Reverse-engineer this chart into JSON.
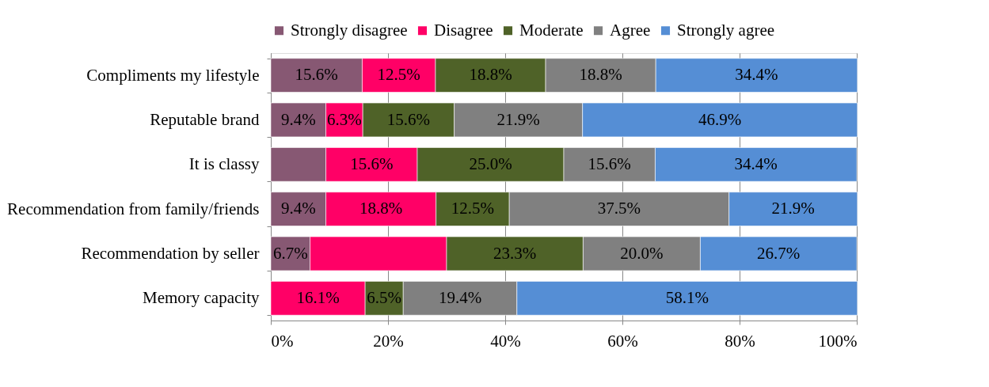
{
  "chart_data": {
    "type": "bar",
    "orientation": "horizontal",
    "stacked": true,
    "categories": [
      "Compliments my lifestyle",
      "Reputable brand",
      "It is classy",
      "Recommendation from family/friends",
      "Recommendation by seller",
      "Memory capacity"
    ],
    "series": [
      {
        "name": "Strongly disagree",
        "color": "#875873",
        "values": [
          15.6,
          9.4,
          9.4,
          9.4,
          6.7,
          null
        ],
        "value_labels": [
          "15.6%",
          "9.4%",
          null,
          "9.4%",
          "6.7%",
          null
        ]
      },
      {
        "name": "Disagree",
        "color": "#ff0066",
        "values": [
          12.5,
          6.3,
          15.6,
          18.8,
          23.3,
          16.1
        ],
        "value_labels": [
          "12.5%",
          "6.3%",
          "15.6%",
          "18.8%",
          null,
          "16.1%"
        ]
      },
      {
        "name": "Moderate",
        "color": "#4f6228",
        "values": [
          18.8,
          15.6,
          25.0,
          12.5,
          23.3,
          6.5
        ],
        "value_labels": [
          "18.8%",
          "15.6%",
          "25.0%",
          "12.5%",
          "23.3%",
          "6.5%"
        ]
      },
      {
        "name": "Agree",
        "color": "#808080",
        "values": [
          18.8,
          21.9,
          15.6,
          37.5,
          20.0,
          19.4
        ],
        "value_labels": [
          "18.8%",
          "21.9%",
          "15.6%",
          "37.5%",
          "20.0%",
          "19.4%"
        ]
      },
      {
        "name": "Strongly agree",
        "color": "#558ed5",
        "values": [
          34.4,
          46.9,
          34.4,
          21.9,
          26.7,
          58.1
        ],
        "value_labels": [
          "34.4%",
          "46.9%",
          "34.4%",
          "21.9%",
          "26.7%",
          "58.1%"
        ]
      }
    ],
    "xlim": [
      0,
      100
    ],
    "xticks": [
      {
        "value": 0,
        "label": "0%"
      },
      {
        "value": 20,
        "label": "20%"
      },
      {
        "value": 40,
        "label": "40%"
      },
      {
        "value": 60,
        "label": "60%"
      },
      {
        "value": 80,
        "label": "80%"
      },
      {
        "value": 100,
        "label": "100%"
      }
    ],
    "grid": "x",
    "legend": "top"
  }
}
